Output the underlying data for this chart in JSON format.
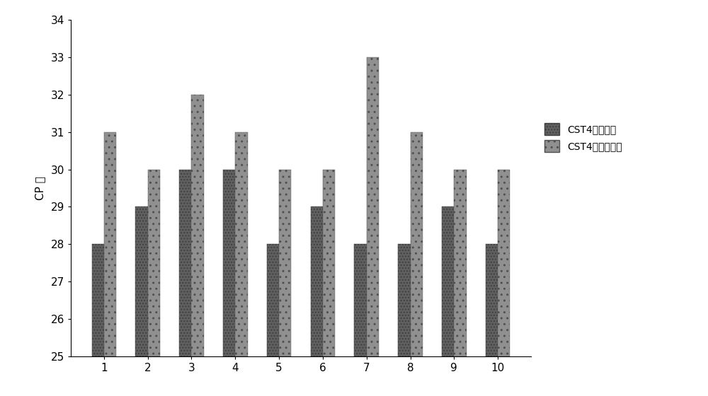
{
  "categories": [
    1,
    2,
    3,
    4,
    5,
    6,
    7,
    8,
    9,
    10
  ],
  "series1_values": [
    28,
    29,
    30,
    30,
    28,
    29,
    28,
    28,
    29,
    28
  ],
  "series2_values": [
    31,
    30,
    32,
    31,
    30,
    30,
    33,
    31,
    30,
    30
  ],
  "series1_label": "CST4特异探针",
  "series2_label": "CST4非特异探针",
  "ylabel": "CP 值",
  "ylim_min": 25,
  "ylim_max": 34,
  "yticks": [
    25,
    26,
    27,
    28,
    29,
    30,
    31,
    32,
    33,
    34
  ],
  "bar_width": 0.28,
  "background_color": "#ffffff",
  "axis_fontsize": 11,
  "legend_fontsize": 10,
  "fig_width": 10.0,
  "fig_height": 5.6
}
